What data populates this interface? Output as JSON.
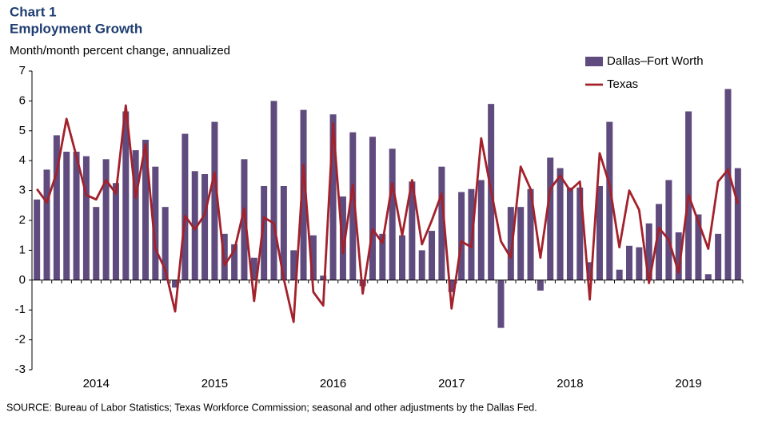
{
  "chart_data": {
    "type": "bar_line",
    "title": "Chart 1",
    "subtitle": "Employment Growth",
    "y_axis_label": "Month/month  percent change, annualized",
    "source": "SOURCE: Bureau of Labor Statistics; Texas Workforce Commission; seasonal and other adjustments by the Dallas Fed.",
    "categories": [
      null,
      null,
      null,
      null,
      null,
      null,
      "2014",
      null,
      null,
      null,
      null,
      null,
      null,
      null,
      null,
      null,
      null,
      null,
      "2015",
      null,
      null,
      null,
      null,
      null,
      null,
      null,
      null,
      null,
      null,
      null,
      "2016",
      null,
      null,
      null,
      null,
      null,
      null,
      null,
      null,
      null,
      null,
      null,
      "2017",
      null,
      null,
      null,
      null,
      null,
      null,
      null,
      null,
      null,
      null,
      null,
      "2018",
      null,
      null,
      null,
      null,
      null,
      null,
      null,
      null,
      null,
      null,
      null,
      "2019",
      null,
      null,
      null,
      null,
      null
    ],
    "series": [
      {
        "name": "Dallas–Fort Worth",
        "type": "bar",
        "color": "#5f4b7d",
        "values": [
          2.7,
          3.7,
          4.85,
          4.3,
          4.3,
          4.15,
          2.45,
          4.05,
          3.25,
          5.65,
          4.35,
          4.7,
          3.8,
          2.45,
          -0.25,
          4.9,
          3.65,
          3.55,
          5.3,
          1.55,
          1.2,
          4.05,
          0.75,
          3.15,
          6.0,
          3.15,
          1.0,
          5.7,
          1.5,
          0.15,
          5.55,
          2.8,
          4.95,
          -0.2,
          4.8,
          1.55,
          4.4,
          1.5,
          3.3,
          1.0,
          1.65,
          3.8,
          -0.4,
          2.95,
          3.05,
          3.35,
          5.9,
          -1.6,
          2.45,
          2.45,
          3.05,
          -0.35,
          4.1,
          3.75,
          3.1,
          3.1,
          0.6,
          3.15,
          5.3,
          0.35,
          1.15,
          1.1,
          1.9,
          2.55,
          3.35,
          1.6,
          5.65,
          2.2,
          0.2,
          1.55,
          6.4,
          3.75
        ]
      },
      {
        "name": "Texas",
        "type": "line",
        "color": "#a3212b",
        "values": [
          3.05,
          2.6,
          3.6,
          5.4,
          4.15,
          2.85,
          2.7,
          3.35,
          2.9,
          5.85,
          2.75,
          4.55,
          1.05,
          0.35,
          -1.05,
          2.15,
          1.7,
          2.2,
          3.6,
          0.5,
          1.0,
          2.4,
          -0.7,
          2.1,
          1.9,
          0.05,
          -1.4,
          3.85,
          -0.4,
          -0.85,
          5.25,
          0.9,
          3.2,
          -0.45,
          1.7,
          1.25,
          3.25,
          1.5,
          3.35,
          1.2,
          2.0,
          2.9,
          -0.95,
          1.3,
          1.1,
          4.75,
          3.0,
          1.3,
          0.75,
          3.8,
          3.05,
          0.75,
          3.05,
          3.5,
          3.0,
          3.3,
          -0.65,
          4.25,
          3.2,
          1.1,
          3.0,
          2.35,
          -0.1,
          1.75,
          1.35,
          0.25,
          2.85,
          1.95,
          1.05,
          3.3,
          3.7,
          2.55
        ]
      }
    ],
    "ylim": [
      -3,
      7
    ],
    "yticks": [
      -3,
      -2,
      -1,
      0,
      1,
      2,
      3,
      4,
      5,
      6,
      7
    ],
    "legend": "top-right"
  }
}
